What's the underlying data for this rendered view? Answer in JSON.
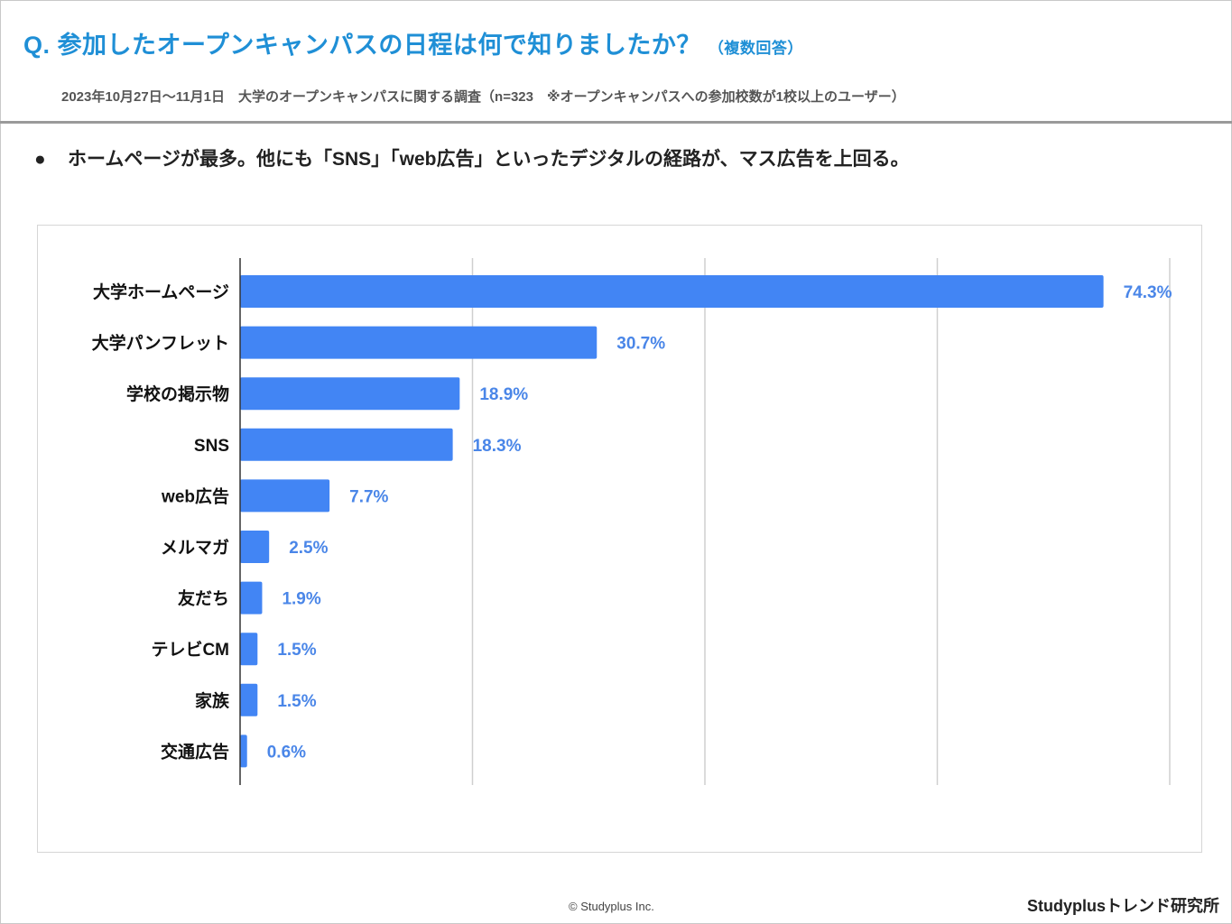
{
  "header": {
    "question": "Q. 参加したオープンキャンパスの日程は何で知りましたか？",
    "question_note": "（複数回答）",
    "survey_info": "2023年10月27日～11月1日　大学のオープンキャンパスに関する調査（n=323　※オープンキャンパスへの参加校数が1校以上のユーザー）"
  },
  "headline": {
    "bullet": "●",
    "text": "ホームページが最多。他にも「SNS」「web広告」といったデジタルの経路が、マス広告を上回る。"
  },
  "chart_data": {
    "type": "bar",
    "orientation": "horizontal",
    "categories": [
      "大学ホームページ",
      "大学パンフレット",
      "学校の掲示物",
      "SNS",
      "web広告",
      "メルマガ",
      "友だち",
      "テレビCM",
      "家族",
      "交通広告"
    ],
    "values": [
      74.3,
      30.7,
      18.9,
      18.3,
      7.7,
      2.5,
      1.9,
      1.5,
      1.5,
      0.6
    ],
    "labels": [
      "74.3%",
      "30.7%",
      "18.9%",
      "18.3%",
      "7.7%",
      "2.5%",
      "1.9%",
      "1.5%",
      "1.5%",
      "0.6%"
    ],
    "xlim": [
      0,
      80
    ],
    "gridlines": [
      0,
      20,
      40,
      60,
      80
    ],
    "bar_color": "#4285f4",
    "label_color": "#4a86e8"
  },
  "footer": {
    "copyright": "© Studyplus Inc.",
    "brand": "Studyplusトレンド研究所"
  }
}
